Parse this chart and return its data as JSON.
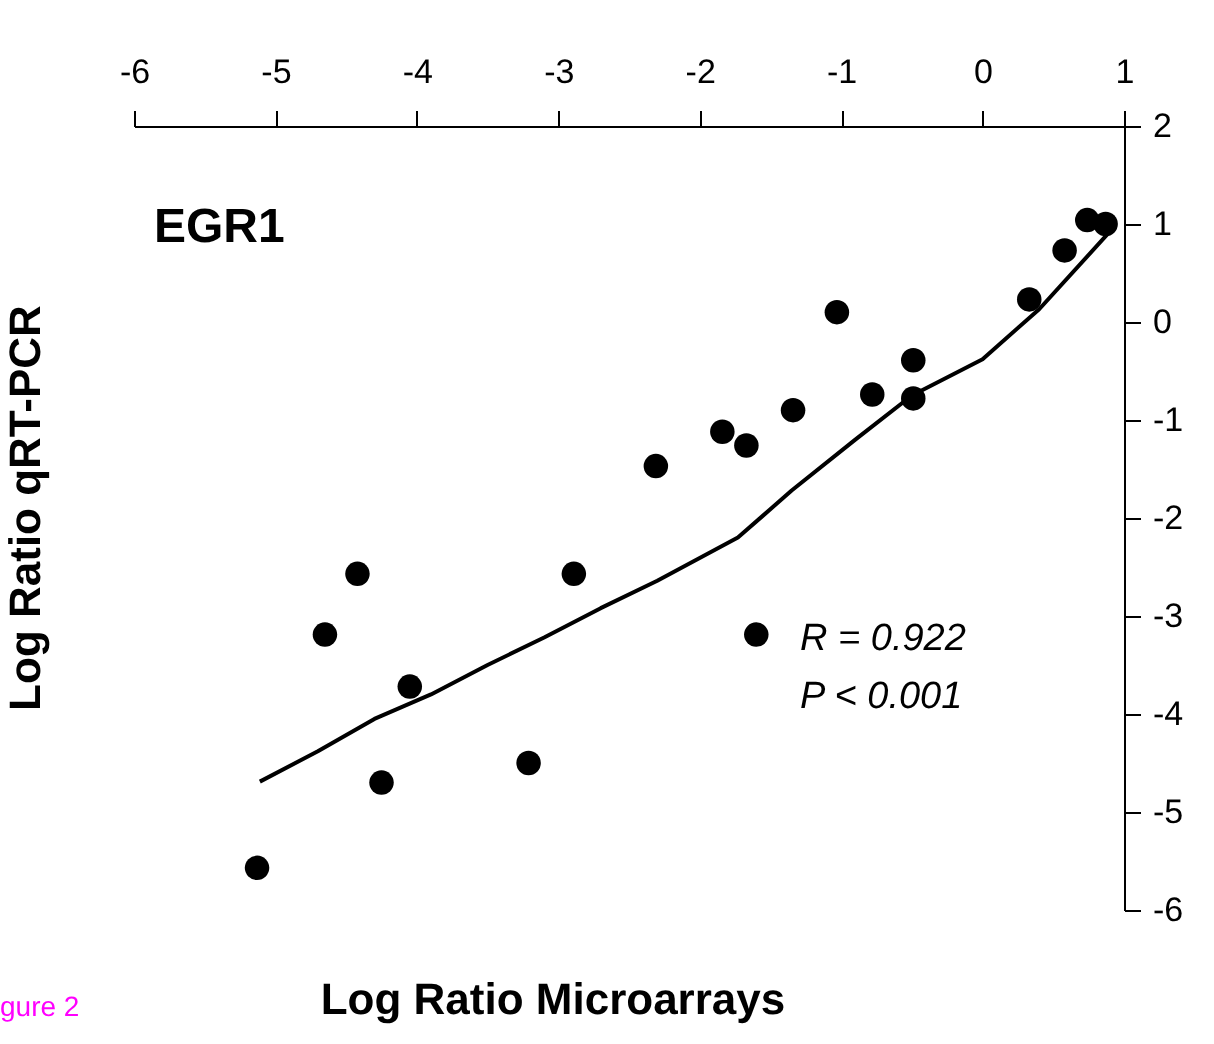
{
  "chart_data": {
    "type": "scatter",
    "title": "EGR1",
    "xlabel": "Log Ratio Microarrays",
    "ylabel": "Log Ratio qRT-PCR",
    "annotations": [
      "R = 0.922",
      "P < 0.001",
      "gure 2"
    ],
    "xlim": [
      -6,
      1
    ],
    "ylim": [
      -6,
      2
    ],
    "xticks": [
      -6,
      -5,
      -4,
      -3,
      -2,
      -1,
      0,
      1
    ],
    "yticks": [
      -6,
      -5,
      -4,
      -3,
      -2,
      -1,
      0,
      1,
      2
    ],
    "grid": false,
    "series": [
      {
        "type": "scatter",
        "marker": "circle",
        "color": "#000000",
        "x": [
          -2.31,
          -1.84,
          -1.67,
          -1.34,
          -1.03,
          -0.78,
          -0.49,
          -0.49,
          0.33,
          0.58,
          0.74,
          0.87,
          -5.13,
          -4.65,
          -4.42,
          -4.05,
          -4.25,
          -3.21,
          -2.89,
          -1.6
        ],
        "values": [
          -1.47,
          -1.12,
          -1.26,
          -0.9,
          0.1,
          -0.74,
          -0.39,
          -0.78,
          0.23,
          0.73,
          1.04,
          1.0,
          -5.57,
          -3.19,
          -2.57,
          -3.72,
          -4.7,
          -4.5,
          -2.57,
          -3.19
        ]
      },
      {
        "type": "line",
        "line_style": "solid",
        "color": "#000000",
        "x": [
          -5.11,
          -4.7,
          -4.3,
          -3.9,
          -3.5,
          -3.1,
          -2.7,
          -2.3,
          -1.73,
          -1.35,
          -0.9,
          -0.5,
          0.0,
          0.4,
          0.93
        ],
        "values": [
          -4.69,
          -4.38,
          -4.05,
          -3.8,
          -3.5,
          -3.22,
          -2.92,
          -2.64,
          -2.2,
          -1.72,
          -1.2,
          -0.75,
          -0.38,
          0.13,
          0.97
        ]
      }
    ]
  }
}
